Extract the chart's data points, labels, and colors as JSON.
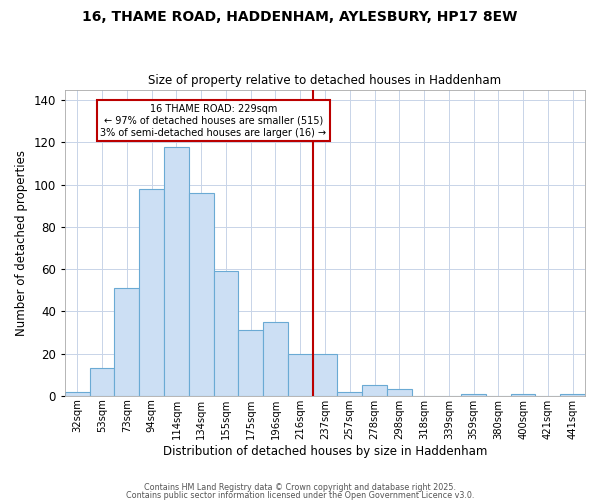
{
  "title": "16, THAME ROAD, HADDENHAM, AYLESBURY, HP17 8EW",
  "subtitle": "Size of property relative to detached houses in Haddenham",
  "xlabel": "Distribution of detached houses by size in Haddenham",
  "ylabel": "Number of detached properties",
  "categories": [
    "32sqm",
    "53sqm",
    "73sqm",
    "94sqm",
    "114sqm",
    "134sqm",
    "155sqm",
    "175sqm",
    "196sqm",
    "216sqm",
    "237sqm",
    "257sqm",
    "278sqm",
    "298sqm",
    "318sqm",
    "339sqm",
    "359sqm",
    "380sqm",
    "400sqm",
    "421sqm",
    "441sqm"
  ],
  "bar_heights": [
    2,
    13,
    51,
    98,
    118,
    96,
    59,
    31,
    35,
    20,
    20,
    2,
    5,
    3,
    0,
    0,
    1,
    0,
    1,
    0,
    1
  ],
  "bar_color": "#ccdff4",
  "bar_edge_color": "#6aaad4",
  "vline_index": 10,
  "vline_color": "#bb0000",
  "annotation_title": "16 THAME ROAD: 229sqm",
  "annotation_line1": "← 97% of detached houses are smaller (515)",
  "annotation_line2": "3% of semi-detached houses are larger (16) →",
  "annotation_box_edge_color": "#bb0000",
  "ylim": [
    0,
    145
  ],
  "yticks": [
    0,
    20,
    40,
    60,
    80,
    100,
    120,
    140
  ],
  "footer1": "Contains HM Land Registry data © Crown copyright and database right 2025.",
  "footer2": "Contains public sector information licensed under the Open Government Licence v3.0.",
  "background_color": "#ffffff",
  "grid_color": "#c8d4e8"
}
